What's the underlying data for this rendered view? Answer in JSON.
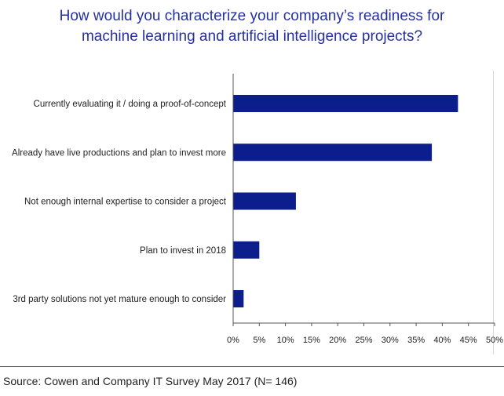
{
  "title_lines": [
    "How would you characterize your company’s readiness for",
    "machine learning and artificial intelligence projects?"
  ],
  "source": "Source: Cowen and Company IT Survey May 2017 (N= 146)",
  "colors": {
    "bar": "#0b1e8c",
    "title": "#2430a0",
    "axis": "#555555",
    "gridline": "#d8d8d8"
  },
  "chart_data": {
    "type": "bar",
    "orientation": "horizontal",
    "title": "How would you characterize your company’s readiness for machine learning and artificial intelligence projects?",
    "xlabel": "",
    "ylabel": "",
    "categories": [
      "Currently evaluating it / doing a proof-of-concept",
      "Already have live productions and plan to invest more",
      "Not enough internal expertise to consider a project",
      "Plan to invest in 2018",
      "3rd party solutions not yet mature enough to consider"
    ],
    "values": [
      43,
      38,
      12,
      5,
      2
    ],
    "unit": "%",
    "xlim": [
      0,
      50
    ],
    "ticks": [
      0,
      5,
      10,
      15,
      20,
      25,
      30,
      35,
      40,
      45,
      50
    ],
    "tick_labels": [
      "0%",
      "5%",
      "10%",
      "15%",
      "20%",
      "25%",
      "30%",
      "35%",
      "40%",
      "45%",
      "50%"
    ],
    "grid": false
  }
}
